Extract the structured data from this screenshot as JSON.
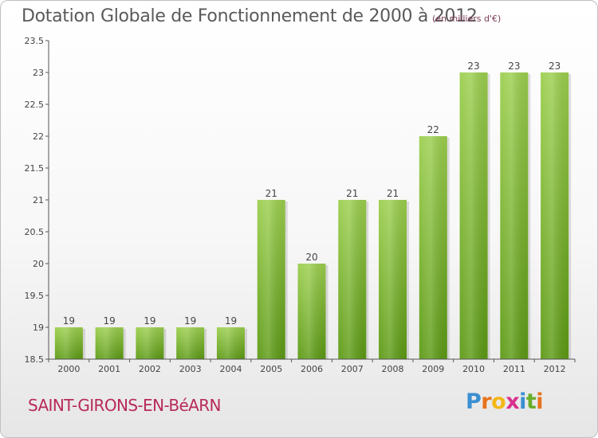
{
  "chart_data": {
    "type": "bar",
    "title": "Dotation Globale de Fonctionnement de 2000 à 2012",
    "unit_note": "(en milliers d'€)",
    "categories": [
      "2000",
      "2001",
      "2002",
      "2003",
      "2004",
      "2005",
      "2006",
      "2007",
      "2008",
      "2009",
      "2010",
      "2011",
      "2012"
    ],
    "values": [
      19,
      19,
      19,
      19,
      19,
      21,
      20,
      21,
      21,
      22,
      23,
      23,
      23
    ],
    "value_labels": [
      "19",
      "19",
      "19",
      "19",
      "19",
      "21",
      "20",
      "21",
      "21",
      "22",
      "23",
      "23",
      "23"
    ],
    "yticks": [
      "18.5",
      "19",
      "19.5",
      "20",
      "20.5",
      "21",
      "21.5",
      "22",
      "22.5",
      "23",
      "23.5"
    ],
    "ylim": [
      18.5,
      23.5
    ],
    "xlabel": "",
    "ylabel": "",
    "grid": false,
    "bar_color_top": "#9ccf4f",
    "bar_color_bottom": "#5c9a14"
  },
  "commune_name": "SAINT-GIRONS-EN-BéARN",
  "logo": {
    "letters": [
      "P",
      "r",
      "o",
      "x",
      "i",
      "t",
      "i"
    ],
    "colors": [
      "#3a8fd1",
      "#e8731a",
      "#f3b716",
      "#d9318c",
      "#3a8fd1",
      "#6aae2b",
      "#e8731a"
    ]
  }
}
